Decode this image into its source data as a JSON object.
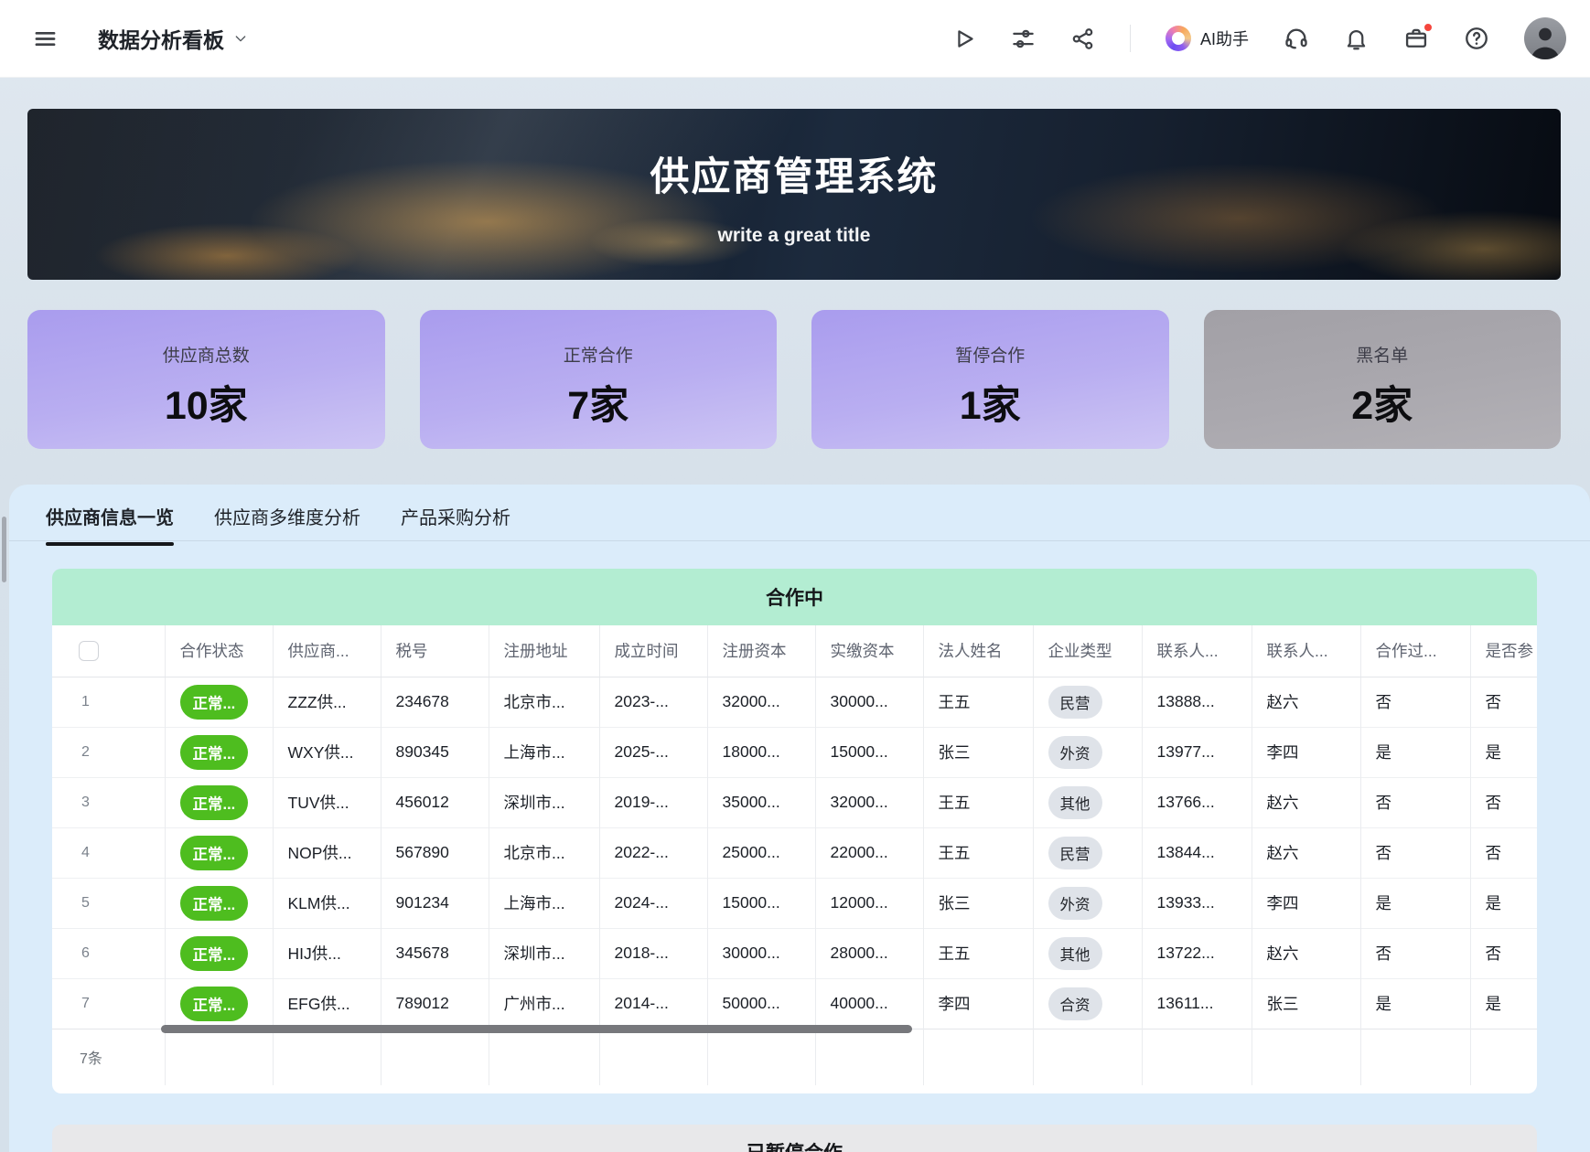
{
  "topbar": {
    "title": "数据分析看板",
    "ai_assistant_label": "AI助手",
    "icons": [
      "hamburger-menu",
      "chevron-down",
      "play",
      "filter-sliders",
      "share",
      "ai-logo",
      "headset",
      "bell",
      "briefcase-inbox",
      "help",
      "avatar"
    ],
    "notification_dot_color": "#f5463d"
  },
  "hero": {
    "title": "供应商管理系统",
    "subtitle": "write a great title"
  },
  "stats": [
    {
      "label": "供应商总数",
      "value": "10家",
      "variant": "purple"
    },
    {
      "label": "正常合作",
      "value": "7家",
      "variant": "purple"
    },
    {
      "label": "暂停合作",
      "value": "1家",
      "variant": "purple"
    },
    {
      "label": "黑名单",
      "value": "2家",
      "variant": "gray"
    }
  ],
  "tabs": [
    {
      "label": "供应商信息一览",
      "active": true
    },
    {
      "label": "供应商多维度分析",
      "active": false
    },
    {
      "label": "产品采购分析",
      "active": false
    }
  ],
  "cooperating_section": {
    "title": "合作中",
    "columns": [
      "合作状态",
      "供应商...",
      "税号",
      "注册地址",
      "成立时间",
      "注册资本",
      "实缴资本",
      "法人姓名",
      "企业类型",
      "联系人...",
      "联系人...",
      "合作过...",
      "是否参"
    ],
    "rows": [
      {
        "num": "1",
        "status": "正常...",
        "supplier": "ZZZ供...",
        "tax_id": "234678",
        "address": "北京市...",
        "founded": "2023-...",
        "registered_capital": "32000...",
        "paid_capital": "30000...",
        "legal_person": "王五",
        "company_type": "民营",
        "contact_phone": "13888...",
        "contact_name": "赵六",
        "cooperated": "否",
        "participated": "否"
      },
      {
        "num": "2",
        "status": "正常...",
        "supplier": "WXY供...",
        "tax_id": "890345",
        "address": "上海市...",
        "founded": "2025-...",
        "registered_capital": "18000...",
        "paid_capital": "15000...",
        "legal_person": "张三",
        "company_type": "外资",
        "contact_phone": "13977...",
        "contact_name": "李四",
        "cooperated": "是",
        "participated": "是"
      },
      {
        "num": "3",
        "status": "正常...",
        "supplier": "TUV供...",
        "tax_id": "456012",
        "address": "深圳市...",
        "founded": "2019-...",
        "registered_capital": "35000...",
        "paid_capital": "32000...",
        "legal_person": "王五",
        "company_type": "其他",
        "contact_phone": "13766...",
        "contact_name": "赵六",
        "cooperated": "否",
        "participated": "否"
      },
      {
        "num": "4",
        "status": "正常...",
        "supplier": "NOP供...",
        "tax_id": "567890",
        "address": "北京市...",
        "founded": "2022-...",
        "registered_capital": "25000...",
        "paid_capital": "22000...",
        "legal_person": "王五",
        "company_type": "民营",
        "contact_phone": "13844...",
        "contact_name": "赵六",
        "cooperated": "否",
        "participated": "否"
      },
      {
        "num": "5",
        "status": "正常...",
        "supplier": "KLM供...",
        "tax_id": "901234",
        "address": "上海市...",
        "founded": "2024-...",
        "registered_capital": "15000...",
        "paid_capital": "12000...",
        "legal_person": "张三",
        "company_type": "外资",
        "contact_phone": "13933...",
        "contact_name": "李四",
        "cooperated": "是",
        "participated": "是"
      },
      {
        "num": "6",
        "status": "正常...",
        "supplier": "HIJ供...",
        "tax_id": "345678",
        "address": "深圳市...",
        "founded": "2018-...",
        "registered_capital": "30000...",
        "paid_capital": "28000...",
        "legal_person": "王五",
        "company_type": "其他",
        "contact_phone": "13722...",
        "contact_name": "赵六",
        "cooperated": "否",
        "participated": "否"
      },
      {
        "num": "7",
        "status": "正常...",
        "supplier": "EFG供...",
        "tax_id": "789012",
        "address": "广州市...",
        "founded": "2014-...",
        "registered_capital": "50000...",
        "paid_capital": "40000...",
        "legal_person": "李四",
        "company_type": "合资",
        "contact_phone": "13611...",
        "contact_name": "张三",
        "cooperated": "是",
        "participated": "是"
      }
    ],
    "footer_count": "7条"
  },
  "paused_section": {
    "title": "已暂停合作"
  },
  "colors": {
    "status_green": "#4ebd1f",
    "type_badge_gray": "#dfe3e9",
    "card_purple": "#ab9ef0",
    "card_gray": "#a8a6ab",
    "section_green": "#b3edd2",
    "section_gray": "#e8e8ea",
    "panel_blue": "#dbecfa"
  }
}
